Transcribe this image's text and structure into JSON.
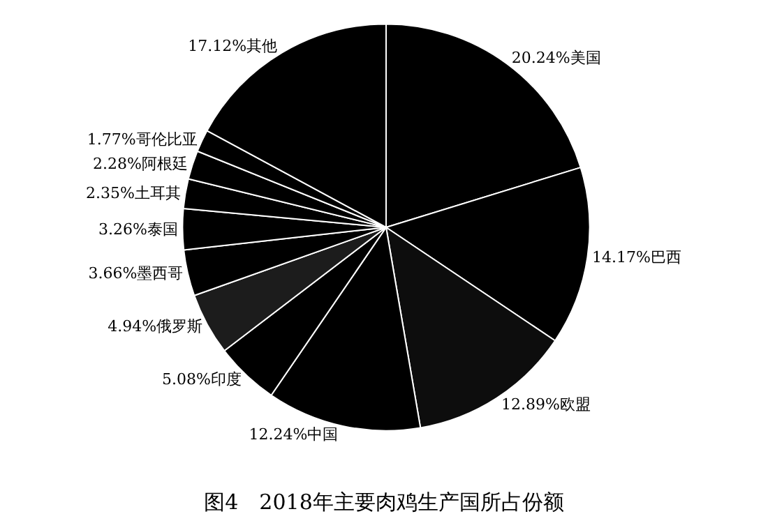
{
  "chart_data": {
    "type": "pie",
    "title": "图4　2018年主要肉鸡生产国所占份额",
    "categories": [
      "美国",
      "巴西",
      "欧盟",
      "中国",
      "印度",
      "俄罗斯",
      "墨西哥",
      "泰国",
      "土耳其",
      "阿根廷",
      "哥伦比亚",
      "其他"
    ],
    "values": [
      20.24,
      14.17,
      12.89,
      12.24,
      5.08,
      4.94,
      3.66,
      3.26,
      2.35,
      2.28,
      1.77,
      17.12
    ],
    "colors": [
      "#000000",
      "#000000",
      "#0d0d0d",
      "#000000",
      "#000000",
      "#1c1c1c",
      "#000000",
      "#000000",
      "#000000",
      "#000000",
      "#000000",
      "#000000"
    ],
    "value_labels": [
      "20.24%",
      "14.17%",
      "12.89%",
      "12.24%",
      "5.08%",
      "4.94%",
      "3.66%",
      "3.26%",
      "2.35%",
      "2.28%",
      "1.77%",
      "17.12%"
    ],
    "legend": false
  }
}
